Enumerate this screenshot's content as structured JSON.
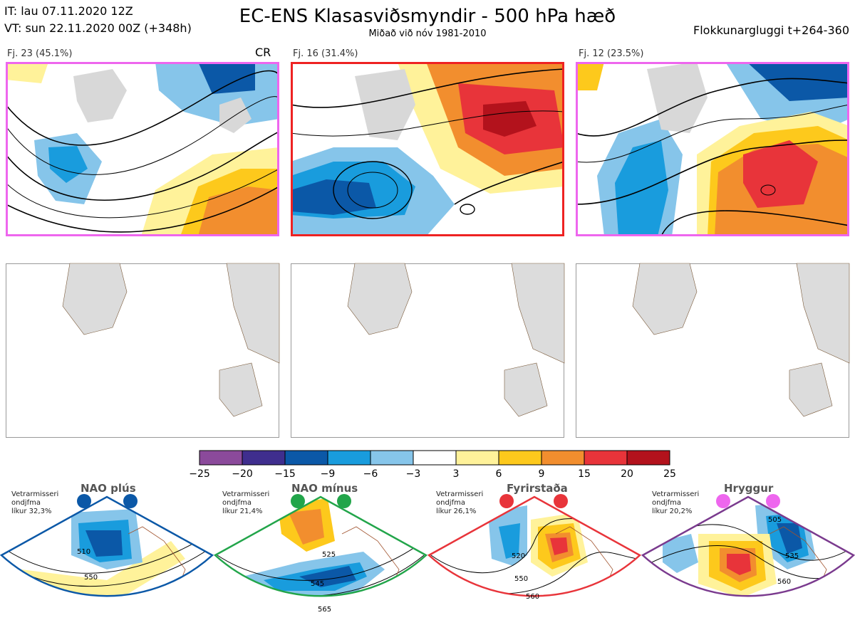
{
  "header": {
    "init_time": "IT: lau 07.11.2020 12Z",
    "valid_time": "VT: sun 22.11.2020 00Z  (+348h)",
    "title": "EC-ENS Klasasviðsmyndir - 500 hPa hæð",
    "subtitle": "Miðað við nóv 1981-2010",
    "window": "Flokkunargluggi t+264-360"
  },
  "clusters": [
    {
      "label": "Fj. 23 (45.1%)",
      "marker": "CR",
      "border_color": "#ee66ee"
    },
    {
      "label": "Fj. 16 (31.4%)",
      "border_color": "#ee2222"
    },
    {
      "label": "Fj. 12 (23.5%)",
      "border_color": "#ee66ee"
    }
  ],
  "colorbar": {
    "ticks": [
      "−25",
      "−20",
      "−15",
      "−9",
      "−6",
      "−3",
      "3",
      "6",
      "9",
      "15",
      "20",
      "25"
    ],
    "colors": [
      "#8b4a9b",
      "#3f2e8e",
      "#0b58a7",
      "#199cdd",
      "#86c5ea",
      "#ffffff",
      "#fff29a",
      "#fdc91c",
      "#f28e2e",
      "#e8343a",
      "#b3121c"
    ]
  },
  "regimes": [
    {
      "name": "NAO plús",
      "note": [
        "Vetrarmisseri",
        "ondjfma",
        "líkur 32,3%"
      ],
      "color": "#0b58a7",
      "contours": [
        "510",
        "550"
      ]
    },
    {
      "name": "NAO mínus",
      "note": [
        "Vetrarmisseri",
        "ondjfma",
        "líkur 21,4%"
      ],
      "color": "#22a54a",
      "contours": [
        "525",
        "545",
        "565"
      ]
    },
    {
      "name": "Fyrirstaða",
      "note": [
        "Vetrarmisseri",
        "ondjfma",
        "líkur 26,1%"
      ],
      "color": "#e8343a",
      "contours": [
        "520",
        "550",
        "560"
      ]
    },
    {
      "name": "Hryggur",
      "note": [
        "Vetrarmisseri",
        "ondjfma",
        "líkur 20,2%"
      ],
      "color": "#ee66ee",
      "contours": [
        "505",
        "535",
        "560"
      ]
    }
  ]
}
